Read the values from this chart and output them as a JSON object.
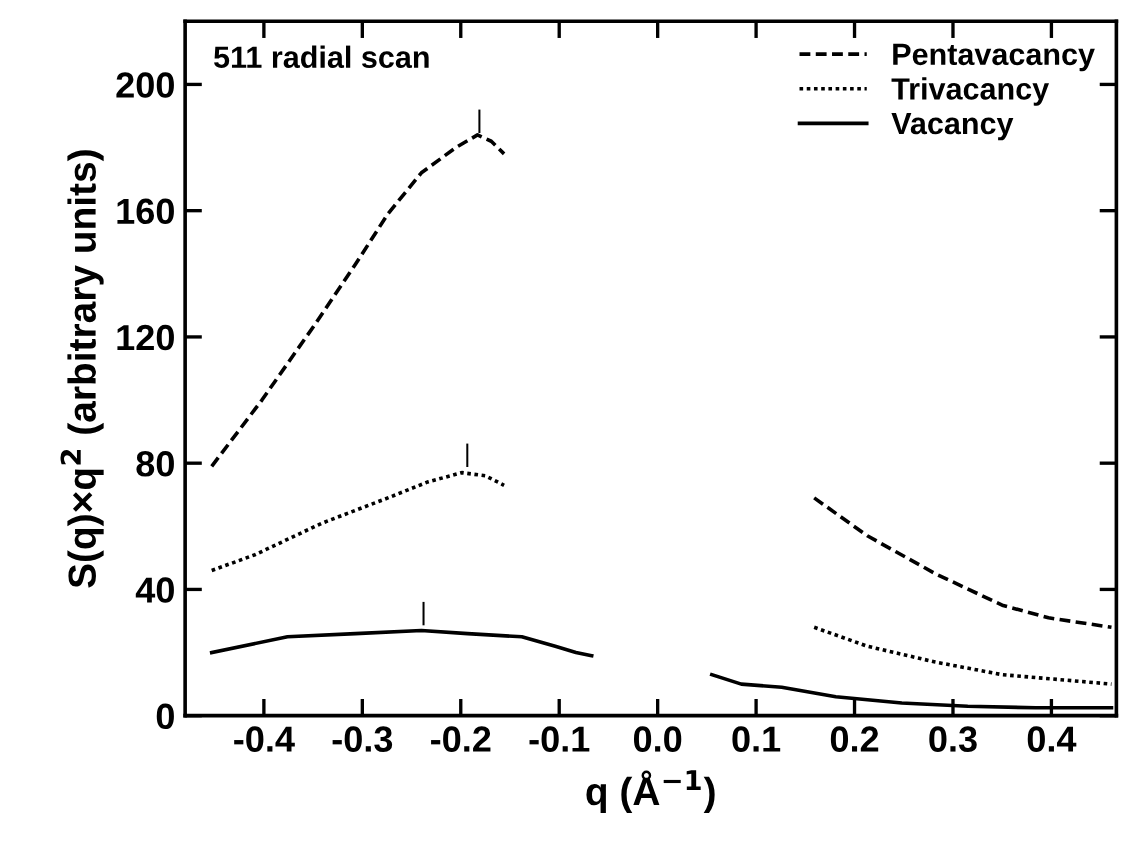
{
  "chart_data": {
    "type": "line",
    "xlabel": "q (Å$^{−1}$)",
    "ylabel": "S(q)×q$^{2}$ (arbitrary units)",
    "series": [
      {
        "name": "Pentavacancy",
        "color": "#000000",
        "line_style": "dashed",
        "x": [
          -0.453,
          -0.402,
          -0.348,
          -0.307,
          -0.274,
          -0.24,
          -0.205,
          -0.183,
          -0.169,
          -0.156,
          null,
          0.159,
          0.213,
          0.282,
          0.35,
          0.397,
          0.461
        ],
        "values": [
          79,
          100,
          124,
          143,
          159,
          172,
          180,
          184,
          182,
          178,
          null,
          69,
          57,
          45,
          35,
          31,
          28
        ]
      },
      {
        "name": "Trivacancy",
        "color": "#000000",
        "line_style": "dotted",
        "x": [
          -0.453,
          -0.409,
          -0.341,
          -0.274,
          -0.234,
          -0.199,
          -0.175,
          -0.156,
          null,
          0.159,
          0.213,
          0.282,
          0.35,
          0.461
        ],
        "values": [
          46,
          51,
          61,
          69,
          74,
          77,
          76,
          73,
          null,
          28,
          22,
          17,
          13,
          10
        ]
      },
      {
        "name": "Vacancy",
        "color": "#000000",
        "line_style": "solid",
        "x": [
          -0.453,
          -0.376,
          -0.307,
          -0.24,
          -0.193,
          -0.138,
          -0.104,
          -0.083,
          -0.067,
          null,
          0.055,
          0.085,
          0.126,
          0.181,
          0.248,
          0.315,
          0.384,
          0.461
        ],
        "values": [
          20,
          25,
          26,
          27,
          26,
          25,
          22,
          20,
          19,
          null,
          13,
          10,
          9,
          6,
          4,
          3,
          2.5,
          2.5
        ]
      }
    ],
    "annotations": [
      "511 radial scan",
      "|",
      "|",
      "|"
    ],
    "xlim": [
      -0.48,
      0.466
    ],
    "ylim": [
      0,
      220
    ],
    "xticks": [
      -0.4,
      -0.3,
      -0.2,
      -0.1,
      {
        "value": 0,
        "label": "0.0"
      },
      0.1,
      0.2,
      0.3,
      0.4
    ],
    "yticks": [
      0,
      40,
      80,
      120,
      160,
      200
    ],
    "tick_labels": "xy",
    "grid": false,
    "legend": "top right",
    "marker": "none"
  }
}
